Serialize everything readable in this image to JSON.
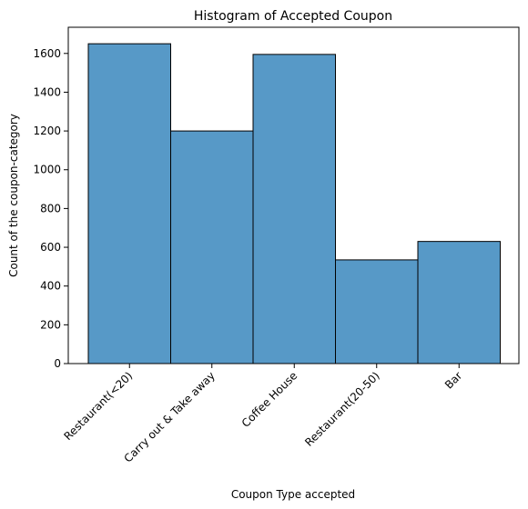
{
  "chart_data": {
    "type": "bar",
    "title": "Histogram of Accepted Coupon",
    "xlabel": "Coupon Type accepted",
    "ylabel": "Count of the coupon-category",
    "categories": [
      "Restaurant(<20)",
      "Carry out & Take away",
      "Coffee House",
      "Restaurant(20-50)",
      "Bar"
    ],
    "values": [
      1650,
      1200,
      1595,
      535,
      630
    ],
    "ylim": [
      0,
      1735
    ],
    "yticks": [
      0,
      200,
      400,
      600,
      800,
      1000,
      1200,
      1400,
      1600
    ],
    "grid": false,
    "bar_color": "#5799c7"
  }
}
